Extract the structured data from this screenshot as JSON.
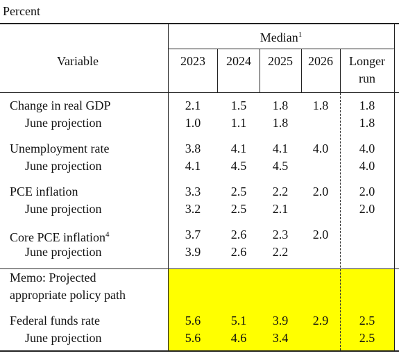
{
  "header": {
    "unit": "Percent",
    "variable": "Variable",
    "median": "Median",
    "median_note": "1",
    "columns": [
      "2023",
      "2024",
      "2025",
      "2026",
      "Longer run"
    ]
  },
  "rows": [
    {
      "label": "Change in real GDP",
      "values": [
        "2.1",
        "1.5",
        "1.8",
        "1.8",
        "1.8"
      ]
    },
    {
      "label": "June projection",
      "values": [
        "1.0",
        "1.1",
        "1.8",
        null,
        "1.8"
      ]
    },
    {
      "label": "Unemployment rate",
      "values": [
        "3.8",
        "4.1",
        "4.1",
        "4.0",
        "4.0"
      ]
    },
    {
      "label": "June projection",
      "values": [
        "4.1",
        "4.5",
        "4.5",
        null,
        "4.0"
      ]
    },
    {
      "label": "PCE inflation",
      "values": [
        "3.3",
        "2.5",
        "2.2",
        "2.0",
        "2.0"
      ]
    },
    {
      "label": "June projection",
      "values": [
        "3.2",
        "2.5",
        "2.1",
        null,
        "2.0"
      ]
    },
    {
      "label": "Core PCE inflation",
      "note": "4",
      "values": [
        "3.7",
        "2.6",
        "2.3",
        "2.0",
        null
      ]
    },
    {
      "label": "June projection",
      "values": [
        "3.9",
        "2.6",
        "2.2",
        null,
        null
      ]
    }
  ],
  "memo": {
    "lines": [
      "Memo: Projected",
      "appropriate policy path"
    ],
    "rows": [
      {
        "label": "Federal funds rate",
        "values": [
          "5.6",
          "5.1",
          "3.9",
          "2.9",
          "2.5"
        ]
      },
      {
        "label": "June projection",
        "values": [
          "5.6",
          "4.6",
          "3.4",
          null,
          "2.5"
        ]
      }
    ]
  }
}
